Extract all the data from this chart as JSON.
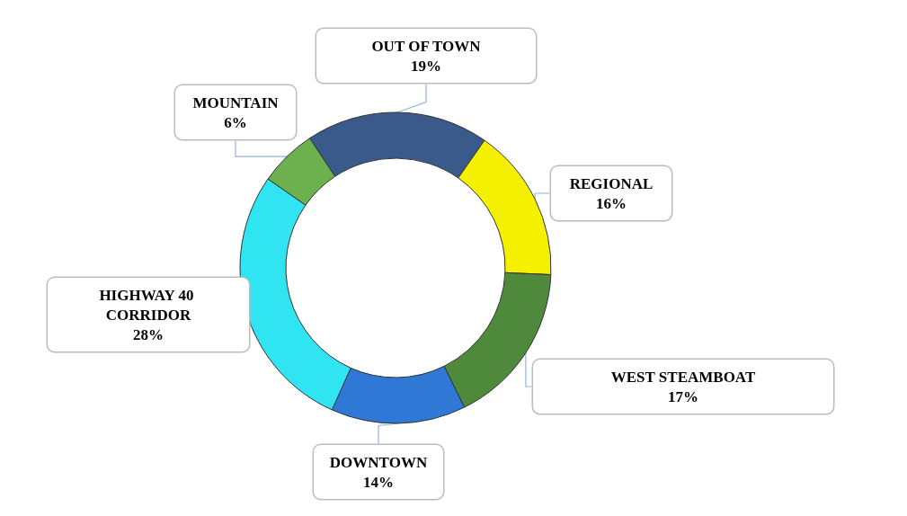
{
  "chart_data": {
    "type": "donut",
    "categories": [
      "OUT OF TOWN",
      "REGIONAL",
      "WEST STEAMBOAT",
      "DOWNTOWN",
      "HIGHWAY 40 CORRIDOR",
      "MOUNTAIN"
    ],
    "values": [
      19,
      16,
      17,
      14,
      28,
      6
    ],
    "value_labels": [
      "19%",
      "16%",
      "17%",
      "14%",
      "28%",
      "6%"
    ],
    "colors": [
      "#3b5a8c",
      "#f5f000",
      "#4f8a3c",
      "#2f78d6",
      "#30e4f2",
      "#6cb14e"
    ],
    "legend": false
  }
}
